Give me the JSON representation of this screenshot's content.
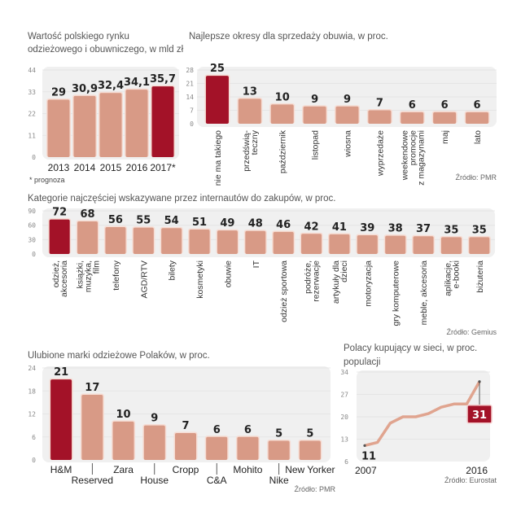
{
  "colors": {
    "bar": "#d89a86",
    "highlight": "#a31228",
    "panel": "#f0f0f0",
    "grid": "#e2e2e2",
    "line": "#e0a48f"
  },
  "chart_data": [
    {
      "id": "market",
      "type": "bar",
      "title_lines": [
        "Wartość polskiego rynku",
        "odzieżowego i obuwniczego, w mld zł"
      ],
      "categories": [
        "2013",
        "2014",
        "2015",
        "2016",
        "2017*"
      ],
      "values": [
        29,
        30.9,
        32.4,
        34.1,
        35.7
      ],
      "value_labels": [
        "29",
        "30,9",
        "32,4",
        "34,1",
        "35,7"
      ],
      "highlight_index": 4,
      "yticks": [
        0,
        11,
        22,
        33,
        44
      ],
      "ylim": [
        0,
        44
      ],
      "note": "* prognoza",
      "source": ""
    },
    {
      "id": "shoe-periods",
      "type": "bar",
      "title_lines": [
        "Najlepsze okresy dla sprzedaży obuwia, w proc."
      ],
      "categories": [
        [
          "nie ma takiego"
        ],
        [
          "przedświą-",
          "teczny"
        ],
        [
          "październik"
        ],
        [
          "listopad"
        ],
        [
          "wiosna"
        ],
        [
          "wyprzedaże"
        ],
        [
          "weekendowe",
          "promocje",
          "z magazynami"
        ],
        [
          "maj"
        ],
        [
          "lato"
        ]
      ],
      "values": [
        25,
        13,
        10,
        9,
        9,
        7,
        6,
        6,
        6
      ],
      "value_labels": [
        "25",
        "13",
        "10",
        "9",
        "9",
        "7",
        "6",
        "6",
        "6"
      ],
      "highlight_index": 0,
      "yticks": [
        0,
        7,
        14,
        21,
        28
      ],
      "ylim": [
        0,
        28
      ],
      "source": "Źródło: PMR"
    },
    {
      "id": "online-categories",
      "type": "bar",
      "title_lines": [
        "Kategorie najczęściej wskazywane przez internautów do zakupów, w proc."
      ],
      "categories": [
        [
          "odzież,",
          "akcesoria"
        ],
        [
          "książki,",
          "muzyka,",
          "film"
        ],
        [
          "telefony"
        ],
        [
          "AGD/RTV"
        ],
        [
          "bilety"
        ],
        [
          "kosmetyki"
        ],
        [
          "obuwie"
        ],
        [
          "IT"
        ],
        [
          "odzież sportowa"
        ],
        [
          "podróże,",
          "rezerwacje"
        ],
        [
          "artykuły dla",
          "dzieci"
        ],
        [
          "motoryzacja"
        ],
        [
          "gry komputerowe"
        ],
        [
          "meble, akcesoria"
        ],
        [
          "aplikacje,",
          "e-booki"
        ],
        [
          "biżuteria"
        ]
      ],
      "values": [
        72,
        68,
        56,
        55,
        54,
        51,
        49,
        48,
        46,
        42,
        41,
        39,
        38,
        37,
        35,
        35
      ],
      "value_labels": [
        "72",
        "68",
        "56",
        "55",
        "54",
        "51",
        "49",
        "48",
        "46",
        "42",
        "41",
        "39",
        "38",
        "37",
        "35",
        "35"
      ],
      "highlight_index": 0,
      "yticks": [
        0,
        30,
        60,
        90
      ],
      "ylim": [
        0,
        90
      ],
      "source": "Źródło: Gemius"
    },
    {
      "id": "brands",
      "type": "bar",
      "title_lines": [
        "Ulubione marki odzieżowe Polaków, w proc."
      ],
      "categories": [
        "H&M",
        "Reserved",
        "Zara",
        "House",
        "Cropp",
        "C&A",
        "Mohito",
        "Nike",
        "New Yorker"
      ],
      "label_staggered": [
        false,
        true,
        false,
        true,
        false,
        true,
        false,
        true,
        false
      ],
      "values": [
        21,
        17,
        10,
        9,
        7,
        6,
        6,
        5,
        5
      ],
      "value_labels": [
        "21",
        "17",
        "10",
        "9",
        "7",
        "6",
        "6",
        "5",
        "5"
      ],
      "highlight_index": 0,
      "yticks": [
        0,
        6,
        12,
        18,
        24
      ],
      "ylim": [
        0,
        24
      ],
      "source": "Źródło: PMR"
    },
    {
      "id": "online-shoppers",
      "type": "line",
      "title_lines": [
        "Polacy kupujący w sieci, w proc.",
        "populacji"
      ],
      "x": [
        2007,
        2008,
        2009,
        2010,
        2011,
        2012,
        2013,
        2014,
        2015,
        2016
      ],
      "values": [
        11,
        12,
        18,
        20,
        20,
        21,
        23,
        24,
        24,
        31
      ],
      "x_labels": [
        "2007",
        "2016"
      ],
      "first_label": "11",
      "last_label": "31",
      "yticks": [
        6,
        13,
        20,
        27,
        34
      ],
      "ylim": [
        6,
        34
      ],
      "source": "Źródło: Eurostat"
    }
  ]
}
